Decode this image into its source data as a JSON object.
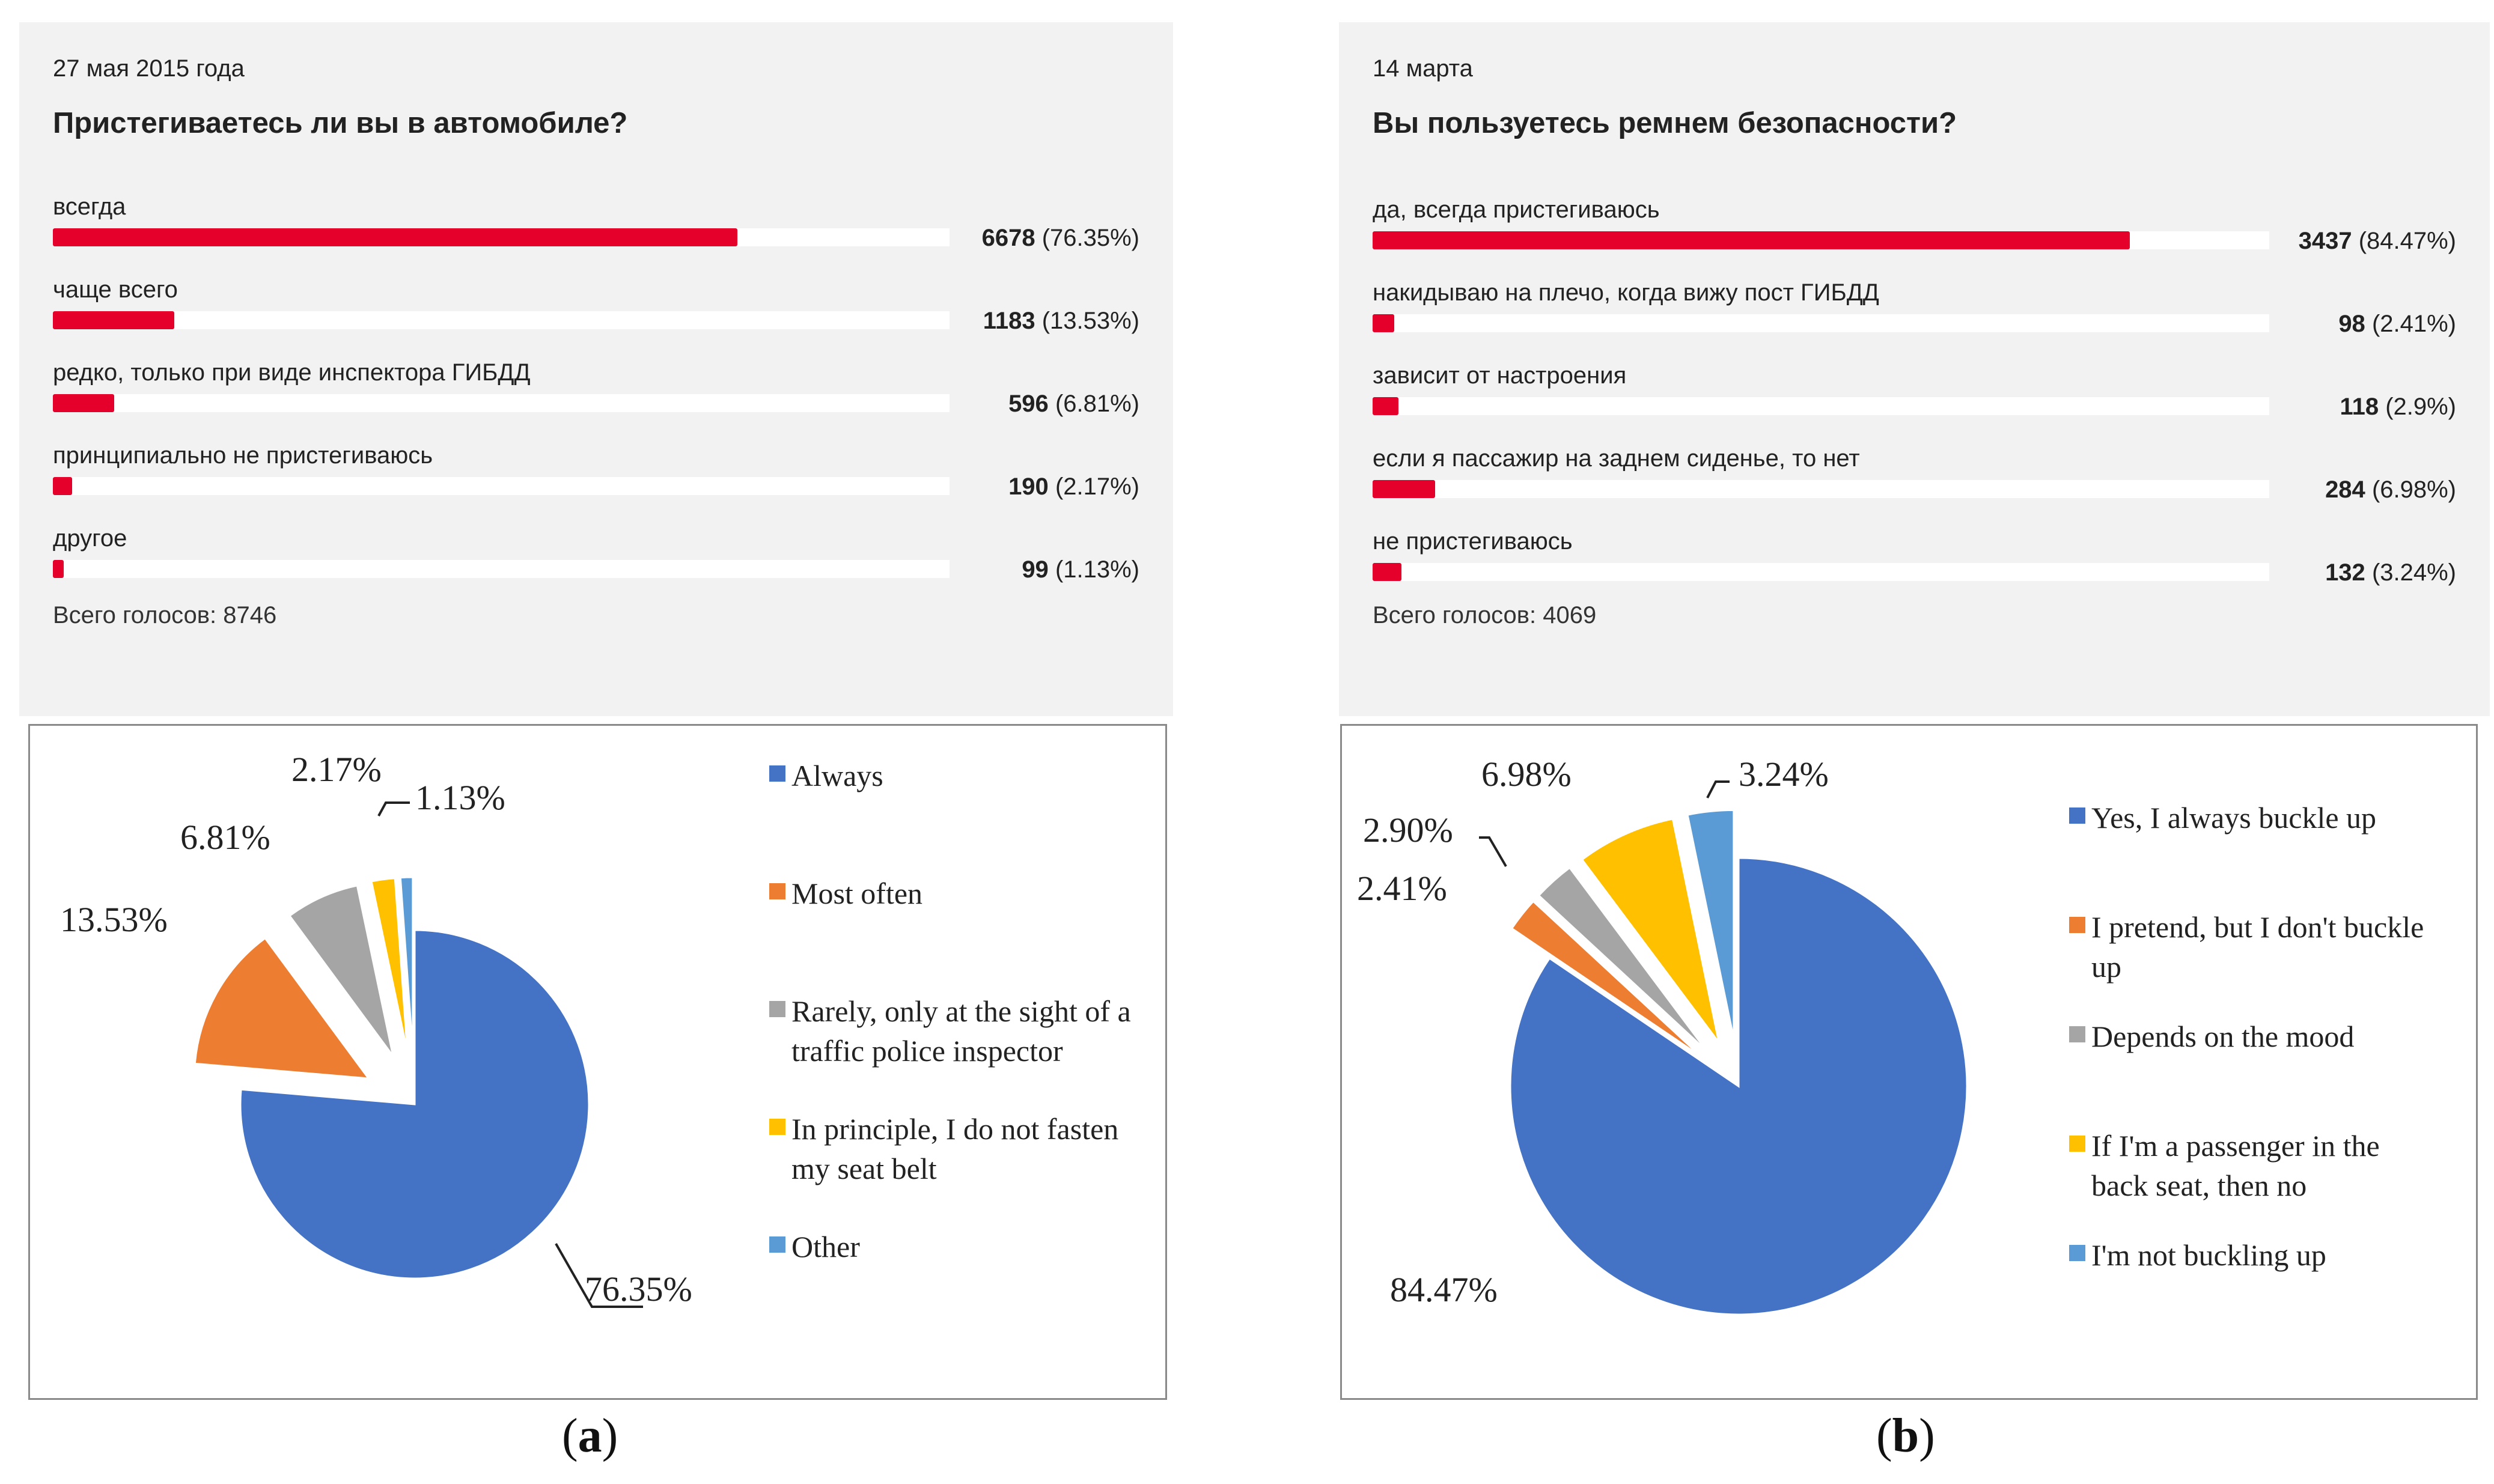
{
  "polls": [
    {
      "date": "27 мая 2015 года",
      "question": "Пристегиваетесь ли вы в автомобиле?",
      "total": "Всего голосов: 8746",
      "options": [
        {
          "label": "всегда",
          "count": "6678",
          "pct": "(76.35%)",
          "value": 76.35
        },
        {
          "label": "чаще всего",
          "count": "1183",
          "pct": "(13.53%)",
          "value": 13.53
        },
        {
          "label": "редко, только при виде инспектора ГИБДД",
          "count": "596",
          "pct": "(6.81%)",
          "value": 6.81
        },
        {
          "label": "принципиально не пристегиваюсь",
          "count": "190",
          "pct": "(2.17%)",
          "value": 2.17
        },
        {
          "label": "другое",
          "count": "99",
          "pct": "(1.13%)",
          "value": 1.13
        }
      ]
    },
    {
      "date": "14 марта",
      "question": "Вы пользуетесь ремнем безопасности?",
      "total": "Всего голосов: 4069",
      "options": [
        {
          "label": "да, всегда пристегиваюсь",
          "count": "3437",
          "pct": "(84.47%)",
          "value": 84.47
        },
        {
          "label": "накидываю на плечо, когда вижу пост ГИБДД",
          "count": "98",
          "pct": "(2.41%)",
          "value": 2.41
        },
        {
          "label": "зависит от настроения",
          "count": "118",
          "pct": "(2.9%)",
          "value": 2.9
        },
        {
          "label": "если я пассажир на заднем сиденье, то нет",
          "count": "284",
          "pct": "(6.98%)",
          "value": 6.98
        },
        {
          "label": "не пристегиваюсь",
          "count": "132",
          "pct": "(3.24%)",
          "value": 3.24
        }
      ]
    }
  ],
  "chart_data": [
    {
      "type": "pie",
      "categories": [
        "Always",
        "Most often",
        "Rarely, only at the sight of a traffic police inspector",
        "In principle, I do not fasten my seat belt",
        "Other"
      ],
      "values": [
        76.35,
        13.53,
        6.81,
        2.17,
        1.13
      ],
      "data_labels": [
        "76.35%",
        "13.53%",
        "6.81%",
        "2.17%",
        "1.13%"
      ],
      "colors": [
        "#4472c4",
        "#ed7d31",
        "#a5a5a5",
        "#ffc000",
        "#5b9bd5"
      ],
      "exploded": true,
      "legend": "right"
    },
    {
      "type": "pie",
      "categories": [
        "Yes, I always buckle up",
        "I pretend, but I don't buckle up",
        "Depends on the mood",
        "If I'm a passenger in the back seat, then no",
        "I'm not buckling up"
      ],
      "values": [
        84.47,
        2.41,
        2.9,
        6.98,
        3.24
      ],
      "data_labels": [
        "84.47%",
        "2.41%",
        "2.90%",
        "6.98%",
        "3.24%"
      ],
      "colors": [
        "#4472c4",
        "#ed7d31",
        "#a5a5a5",
        "#ffc000",
        "#5b9bd5"
      ],
      "exploded": true,
      "legend": "right"
    }
  ],
  "captions": [
    "a",
    "b"
  ]
}
